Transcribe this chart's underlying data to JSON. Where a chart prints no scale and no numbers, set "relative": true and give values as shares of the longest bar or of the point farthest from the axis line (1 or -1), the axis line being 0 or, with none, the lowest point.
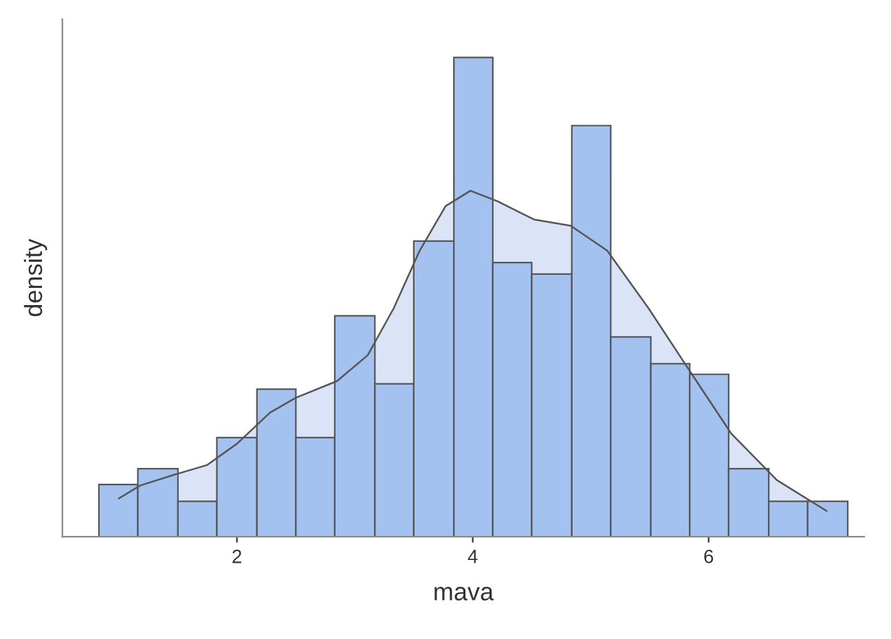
{
  "chart_data": {
    "type": "histogram",
    "relative": true,
    "xlabel": "mava",
    "ylabel": "density",
    "bins": [
      0.83,
      1.16,
      1.5,
      1.83,
      2.17,
      2.5,
      2.83,
      3.17,
      3.5,
      3.84,
      4.17,
      4.5,
      4.84,
      5.17,
      5.51,
      5.84,
      6.17,
      6.51,
      6.84,
      7.18
    ],
    "values": [
      0.109,
      0.142,
      0.074,
      0.207,
      0.308,
      0.207,
      0.461,
      0.319,
      0.617,
      1,
      0.572,
      0.548,
      0.858,
      0.417,
      0.361,
      0.339,
      0.142,
      0.074,
      0.074
    ],
    "color": "#a4c2f0",
    "xlim": [
      0.52,
      7.32
    ],
    "xticks": [
      2,
      4,
      6
    ],
    "grid": false,
    "legend": false,
    "series": [
      {
        "type": "area",
        "color": "#dae4f6",
        "x": [
          1.0,
          1.18,
          1.49,
          1.75,
          2.0,
          2.28,
          2.5,
          2.85,
          3.11,
          3.33,
          3.55,
          3.77,
          3.98,
          4.21,
          4.52,
          4.83,
          5.14,
          5.49,
          5.84,
          6.19,
          6.58,
          7.0
        ],
        "values": [
          0.08,
          0.107,
          0.131,
          0.15,
          0.194,
          0.259,
          0.29,
          0.325,
          0.379,
          0.477,
          0.597,
          0.69,
          0.722,
          0.7,
          0.662,
          0.649,
          0.597,
          0.477,
          0.346,
          0.216,
          0.118,
          0.054
        ]
      }
    ]
  }
}
